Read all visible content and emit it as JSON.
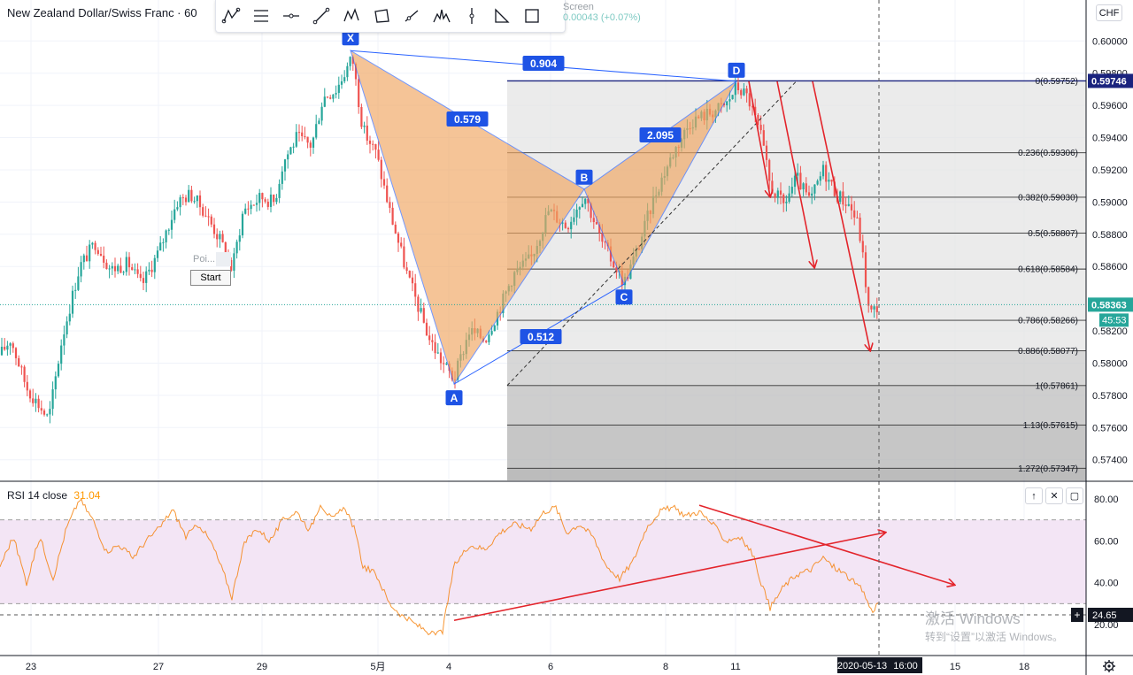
{
  "header": {
    "symbol_title": "New Zealand Dollar/Swiss Franc · 60",
    "ghost_label": "Screen",
    "ghost_change": "0.00043 (+0.07%)",
    "currency": "CHF"
  },
  "toolbar": {
    "tools": [
      "xabcd-pattern-icon",
      "fib-retracement-icon",
      "horizontal-line-icon",
      "trend-line-icon",
      "elliott-wave-icon",
      "rectangle-pattern-icon",
      "ray-icon",
      "head-shoulders-icon",
      "vertical-line-icon",
      "triangle-pattern-icon",
      "frame-icon"
    ]
  },
  "replay": {
    "point_label": "Poi...",
    "start_label": "Start"
  },
  "colors": {
    "up": "#26a69a",
    "down": "#ef5350",
    "pattern_fill": "#f0a660",
    "pattern_line": "#2962ff",
    "rsi_line": "#f57c00",
    "rsi_band": "#f3e5f5",
    "arrow": "#e3242b",
    "fib_zone": "#e6e6e6"
  },
  "chart_data": [
    {
      "type": "candlestick",
      "title": "New Zealand Dollar/Swiss Franc · 60",
      "currency": "CHF",
      "ylim": [
        0.5728,
        0.6018
      ],
      "y_ticks": [
        "0.60000",
        "0.59800",
        "0.59600",
        "0.59400",
        "0.59200",
        "0.59000",
        "0.58800",
        "0.58600",
        "0.58200",
        "0.58000",
        "0.57800",
        "0.57600",
        "0.57400"
      ],
      "x_ticks": [
        "23",
        "27",
        "29",
        "5月",
        "4",
        "6",
        "8",
        "11",
        "15",
        "18"
      ],
      "current_price": "0.58363",
      "countdown": "45:53",
      "fib_price_tag": "0.59746",
      "time_marker": "2020-05-13",
      "time_marker_hour": "16:00",
      "harmonic_pattern": {
        "points": [
          {
            "label": "X",
            "price": 0.5994
          },
          {
            "label": "A",
            "price": 0.5787
          },
          {
            "label": "B",
            "price": 0.5908
          },
          {
            "label": "C",
            "price": 0.5849
          },
          {
            "label": "D",
            "price": 0.5975
          }
        ],
        "ratios": [
          "0.904",
          "0.579",
          "2.095",
          "0.512"
        ]
      },
      "fibonacci_levels": [
        {
          "label": "0(0.59752)",
          "price": 0.59752
        },
        {
          "label": "0.236(0.59306)",
          "price": 0.59306
        },
        {
          "label": "0.382(0.59030)",
          "price": 0.5903
        },
        {
          "label": "0.5(0.58807)",
          "price": 0.58807
        },
        {
          "label": "0.618(0.58584)",
          "price": 0.58584
        },
        {
          "label": "0.786(0.58266)",
          "price": 0.58266
        },
        {
          "label": "0.886(0.58077)",
          "price": 0.58077
        },
        {
          "label": "1(0.57861)",
          "price": 0.57861
        },
        {
          "label": "1.13(0.57615)",
          "price": 0.57615
        },
        {
          "label": "1.272(0.57347)",
          "price": 0.57347
        }
      ],
      "close_path": [
        [
          0,
          0.5805
        ],
        [
          12,
          0.5815
        ],
        [
          30,
          0.5785
        ],
        [
          55,
          0.5765
        ],
        [
          70,
          0.5815
        ],
        [
          90,
          0.586
        ],
        [
          108,
          0.5875
        ],
        [
          125,
          0.5858
        ],
        [
          145,
          0.5862
        ],
        [
          160,
          0.5848
        ],
        [
          180,
          0.587
        ],
        [
          200,
          0.59
        ],
        [
          215,
          0.5905
        ],
        [
          230,
          0.5895
        ],
        [
          250,
          0.5875
        ],
        [
          262,
          0.5858
        ],
        [
          275,
          0.5895
        ],
        [
          295,
          0.5903
        ],
        [
          310,
          0.59
        ],
        [
          320,
          0.5925
        ],
        [
          335,
          0.594
        ],
        [
          352,
          0.5935
        ],
        [
          365,
          0.5965
        ],
        [
          380,
          0.597
        ],
        [
          398,
          0.599
        ],
        [
          410,
          0.5945
        ],
        [
          425,
          0.593
        ],
        [
          440,
          0.5895
        ],
        [
          460,
          0.5855
        ],
        [
          485,
          0.5815
        ],
        [
          500,
          0.58
        ],
        [
          513,
          0.579
        ],
        [
          530,
          0.582
        ],
        [
          548,
          0.5815
        ],
        [
          565,
          0.5835
        ],
        [
          580,
          0.5855
        ],
        [
          600,
          0.5865
        ],
        [
          620,
          0.5895
        ],
        [
          640,
          0.5885
        ],
        [
          660,
          0.5905
        ],
        [
          680,
          0.5875
        ],
        [
          705,
          0.585
        ],
        [
          720,
          0.587
        ],
        [
          740,
          0.5905
        ],
        [
          760,
          0.593
        ],
        [
          780,
          0.595
        ],
        [
          800,
          0.5955
        ],
        [
          820,
          0.596
        ],
        [
          832,
          0.5972
        ],
        [
          845,
          0.5965
        ],
        [
          860,
          0.594
        ],
        [
          870,
          0.591
        ],
        [
          885,
          0.5898
        ],
        [
          900,
          0.5915
        ],
        [
          915,
          0.59
        ],
        [
          930,
          0.592
        ],
        [
          945,
          0.5905
        ],
        [
          960,
          0.5898
        ],
        [
          970,
          0.5885
        ],
        [
          975,
          0.5865
        ],
        [
          982,
          0.583
        ],
        [
          993,
          0.5836
        ]
      ]
    },
    {
      "type": "line",
      "title": "RSI 14 close",
      "current_value": "31.04",
      "crosshair_value": "24.65",
      "ylim": [
        13,
        87
      ],
      "y_ticks": [
        "80.00",
        "60.00",
        "40.00",
        "20.00"
      ],
      "band": [
        30,
        70
      ],
      "series": [
        {
          "name": "RSI 14 close",
          "points": [
            [
              0,
              48
            ],
            [
              15,
              62
            ],
            [
              30,
              40
            ],
            [
              45,
              62
            ],
            [
              60,
              42
            ],
            [
              75,
              66
            ],
            [
              90,
              80
            ],
            [
              105,
              70
            ],
            [
              120,
              55
            ],
            [
              135,
              58
            ],
            [
              150,
              52
            ],
            [
              165,
              60
            ],
            [
              180,
              66
            ],
            [
              195,
              75
            ],
            [
              210,
              62
            ],
            [
              225,
              68
            ],
            [
              240,
              58
            ],
            [
              255,
              42
            ],
            [
              262,
              33
            ],
            [
              275,
              58
            ],
            [
              290,
              66
            ],
            [
              305,
              60
            ],
            [
              320,
              70
            ],
            [
              335,
              74
            ],
            [
              350,
              65
            ],
            [
              362,
              78
            ],
            [
              375,
              70
            ],
            [
              390,
              76
            ],
            [
              400,
              66
            ],
            [
              410,
              48
            ],
            [
              425,
              44
            ],
            [
              440,
              30
            ],
            [
              455,
              24
            ],
            [
              470,
              20
            ],
            [
              490,
              15
            ],
            [
              500,
              17
            ],
            [
              513,
              48
            ],
            [
              530,
              58
            ],
            [
              548,
              56
            ],
            [
              565,
              64
            ],
            [
              580,
              68
            ],
            [
              600,
              66
            ],
            [
              615,
              74
            ],
            [
              628,
              76
            ],
            [
              640,
              64
            ],
            [
              655,
              68
            ],
            [
              670,
              62
            ],
            [
              685,
              48
            ],
            [
              700,
              42
            ],
            [
              715,
              50
            ],
            [
              730,
              66
            ],
            [
              745,
              74
            ],
            [
              760,
              76
            ],
            [
              775,
              72
            ],
            [
              790,
              74
            ],
            [
              805,
              68
            ],
            [
              820,
              60
            ],
            [
              835,
              62
            ],
            [
              850,
              54
            ],
            [
              860,
              40
            ],
            [
              870,
              28
            ],
            [
              885,
              38
            ],
            [
              900,
              44
            ],
            [
              915,
              46
            ],
            [
              930,
              52
            ],
            [
              940,
              48
            ],
            [
              955,
              44
            ],
            [
              965,
              40
            ],
            [
              975,
              36
            ],
            [
              985,
              26
            ],
            [
              993,
              31
            ]
          ]
        }
      ],
      "trend_lines": [
        {
          "from": [
            513,
            22
          ],
          "to": [
            1000,
            64
          ]
        },
        {
          "from": [
            790,
            77
          ],
          "to": [
            1078,
            39
          ]
        }
      ]
    }
  ]
}
